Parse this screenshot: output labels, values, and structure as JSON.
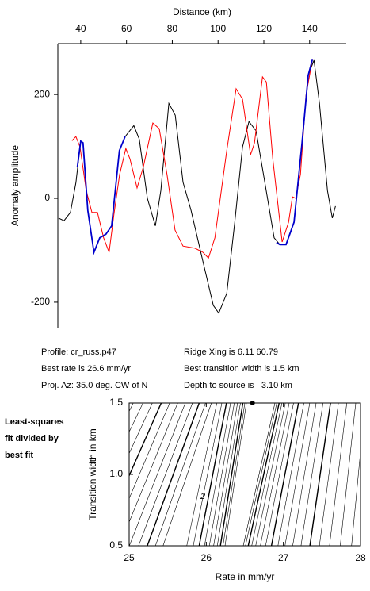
{
  "chart_data": [
    {
      "type": "line",
      "x_label": "Distance (km)",
      "y_label": "Anomaly amplitude",
      "xlim": [
        30,
        156
      ],
      "ylim": [
        -249,
        298
      ],
      "xticks": [
        40,
        60,
        80,
        100,
        120,
        140
      ],
      "yticks": [
        -200,
        0,
        200
      ],
      "series": [
        {
          "color": "#000000",
          "x": [
            30.3,
            32.7,
            35.5,
            37.9,
            40,
            41,
            43.1,
            45.8,
            48.3,
            51,
            53.5,
            56.9,
            59.4,
            63.2,
            65.6,
            69.1,
            72.6,
            75,
            78.5,
            81.3,
            84.7,
            88.2,
            93.4,
            97.9,
            100.3,
            103.8,
            107.3,
            110.7,
            113.5,
            116.6,
            120.4,
            124.5,
            127,
            129.7,
            133.2,
            136.7,
            139.4,
            141.9,
            144.3,
            147.8,
            149.9,
            151.3
          ],
          "values": [
            -38,
            -43,
            -27,
            30,
            110,
            107,
            -23,
            -104,
            -76,
            -69,
            -53,
            92,
            119,
            140,
            114,
            0,
            -53,
            15,
            183,
            160,
            31,
            -23,
            -122,
            -206,
            -221,
            -183,
            -46,
            99,
            148,
            130,
            31,
            -76,
            -89,
            -89,
            -46,
            107,
            237,
            266,
            183,
            15,
            -38,
            -15
          ]
        },
        {
          "color": "#ff0000",
          "x": [
            36.2,
            37.9,
            39.7,
            42.4,
            44.9,
            47.3,
            50,
            52.4,
            54.5,
            57,
            59.7,
            61.5,
            64.6,
            67.4,
            71.5,
            74.3,
            77.7,
            81.2,
            84.7,
            89.9,
            93.4,
            95.8,
            98.6,
            103.8,
            107.9,
            110.7,
            114.2,
            115.9,
            119.4,
            121.1,
            123.9,
            128,
            130.8,
            132.5,
            133.9,
            136,
            138.4,
            141.2
          ],
          "values": [
            111,
            119,
            99,
            15,
            -27,
            -27,
            -76,
            -104,
            -31,
            46,
            96,
            76,
            20,
            61,
            145,
            134,
            46,
            -61,
            -92,
            -96,
            -104,
            -115,
            -76,
            92,
            211,
            191,
            84,
            107,
            234,
            224,
            76,
            -84,
            -46,
            3,
            0,
            46,
            198,
            267
          ]
        },
        {
          "color": "#0000cc",
          "x": [
            38.5,
            40,
            41,
            43.1,
            45.8,
            48.3,
            51,
            53.5,
            56.9,
            59.4,
            90,
            125.5,
            127,
            129.7,
            133.2,
            136.7,
            139.4,
            141.2
          ],
          "values": [
            60,
            110,
            107,
            -23,
            -104,
            -76,
            -69,
            -53,
            92,
            119,
            null,
            -85,
            -89,
            -89,
            -46,
            107,
            237,
            267
          ]
        }
      ]
    },
    {
      "type": "contour",
      "x_label": "Rate in mm/yr",
      "y_label": "Transition width in km",
      "xlim": [
        25,
        28
      ],
      "ylim": [
        0.5,
        1.5
      ],
      "xticks": [
        25,
        26,
        27,
        28
      ],
      "yticks": [
        0.5,
        {
          "value": 1,
          "label": "1.0"
        },
        1.5
      ],
      "best_fit": {
        "x": 26.6,
        "y": 1.5
      },
      "contour_label": "2"
    }
  ],
  "info": [
    "Profile: cr_russ.p47",
    "Ridge Xing is 6.11 60.79",
    "Best rate is 26.6 mm/yr",
    "Best transition width is 1.5 km",
    "Proj. Az: 35.0 deg. CW of N",
    "Depth to source is   3.10 km"
  ],
  "side_note": [
    "Least-squares",
    "fit divided by",
    "best fit"
  ]
}
